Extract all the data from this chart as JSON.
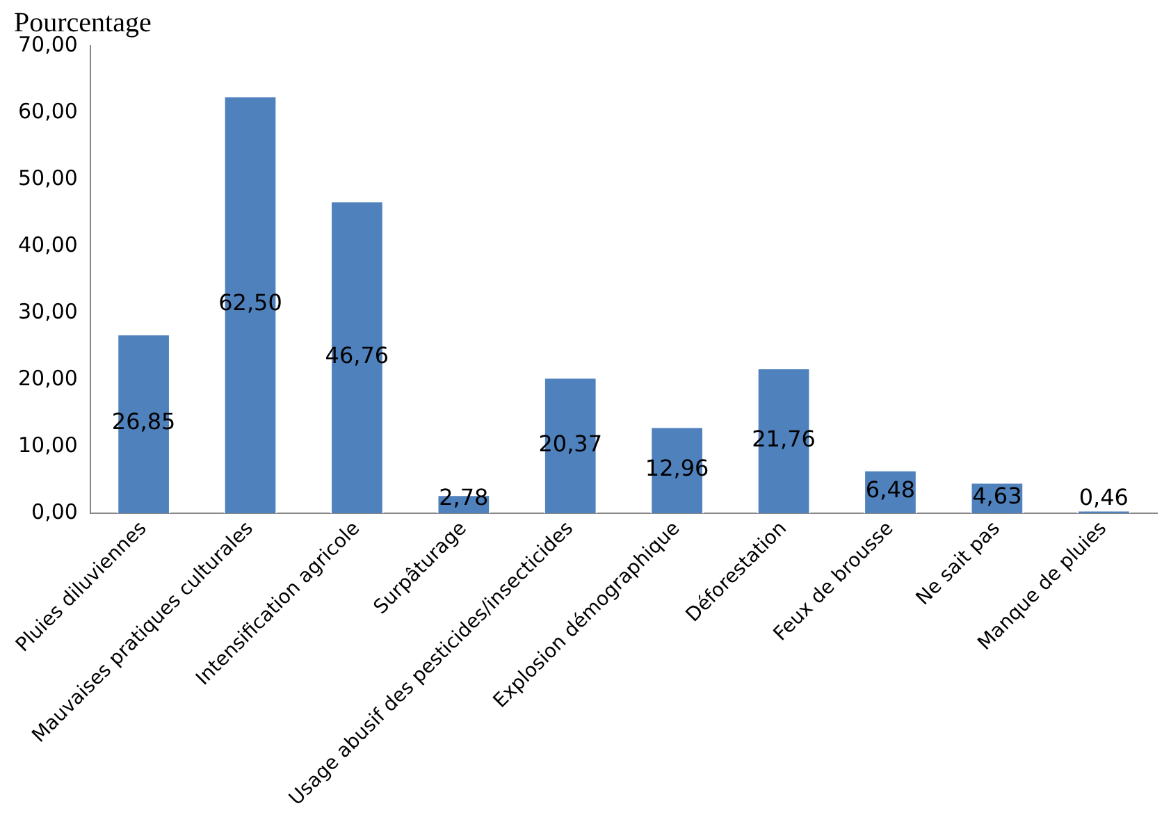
{
  "chart_data": {
    "type": "bar",
    "title": "Pourcentage",
    "categories": [
      "Pluies diluviennes",
      "Mauvaises pratiques culturales",
      "Intensification agricole",
      "Surpâturage",
      "Usage abusif des pesticides/insecticides",
      "Explosion démographique",
      "Déforestation",
      "Feux de brousse",
      "Ne sait pas",
      "Manque de pluies"
    ],
    "values": [
      26.85,
      62.5,
      46.76,
      2.78,
      20.37,
      12.96,
      21.76,
      6.48,
      4.63,
      0.46
    ],
    "value_labels": [
      "26,85",
      "62,50",
      "46,76",
      "2,78",
      "20,37",
      "12,96",
      "21,76",
      "6,48",
      "4,63",
      "0,46"
    ],
    "color": "#4f81bd",
    "ylim": [
      0,
      70
    ],
    "yticks": [
      {
        "value": 0,
        "label": "0,00"
      },
      {
        "value": 10,
        "label": "10,00"
      },
      {
        "value": 20,
        "label": "20,00"
      },
      {
        "value": 30,
        "label": "30,00"
      },
      {
        "value": 40,
        "label": "40,00"
      },
      {
        "value": 50,
        "label": "50,00"
      },
      {
        "value": 60,
        "label": "60,00"
      },
      {
        "value": 70,
        "label": "70,00"
      }
    ],
    "grid": false,
    "legend": false
  }
}
